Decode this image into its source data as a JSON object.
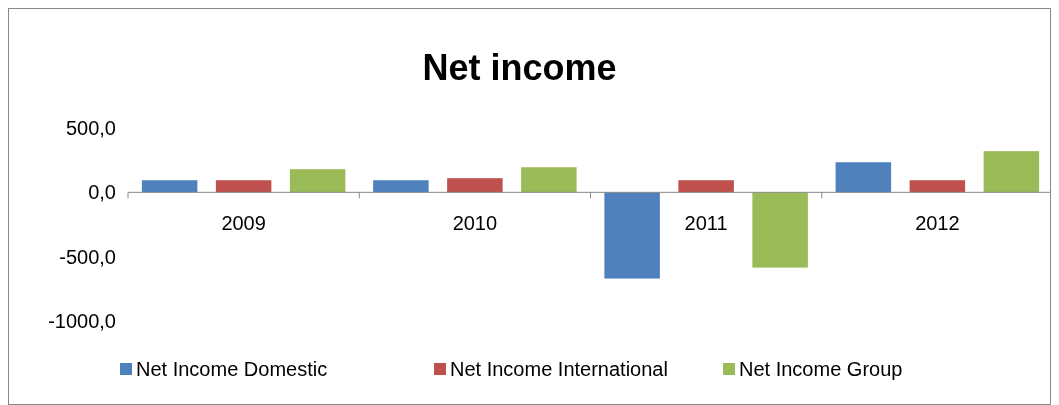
{
  "chart_data": {
    "type": "bar",
    "title": "Net income",
    "categories": [
      "2009",
      "2010",
      "2011",
      "2012"
    ],
    "series": [
      {
        "name": "Net Income Domestic",
        "color": "#4f81bd",
        "values": [
          94,
          94,
          -670,
          234
        ]
      },
      {
        "name": "Net Income International",
        "color": "#c0504d",
        "values": [
          94,
          110,
          94,
          94
        ]
      },
      {
        "name": "Net Income Group",
        "color": "#9bbb59",
        "values": [
          180,
          195,
          -585,
          320
        ]
      }
    ],
    "ylim": [
      -1000,
      500
    ],
    "yticks": [
      {
        "value": -1000,
        "label": "-1000,0"
      },
      {
        "value": -500,
        "label": "-500,0"
      },
      {
        "value": 0,
        "label": "0,0"
      },
      {
        "value": 500,
        "label": "500,0"
      }
    ],
    "grid": false,
    "legend": "bottom"
  }
}
